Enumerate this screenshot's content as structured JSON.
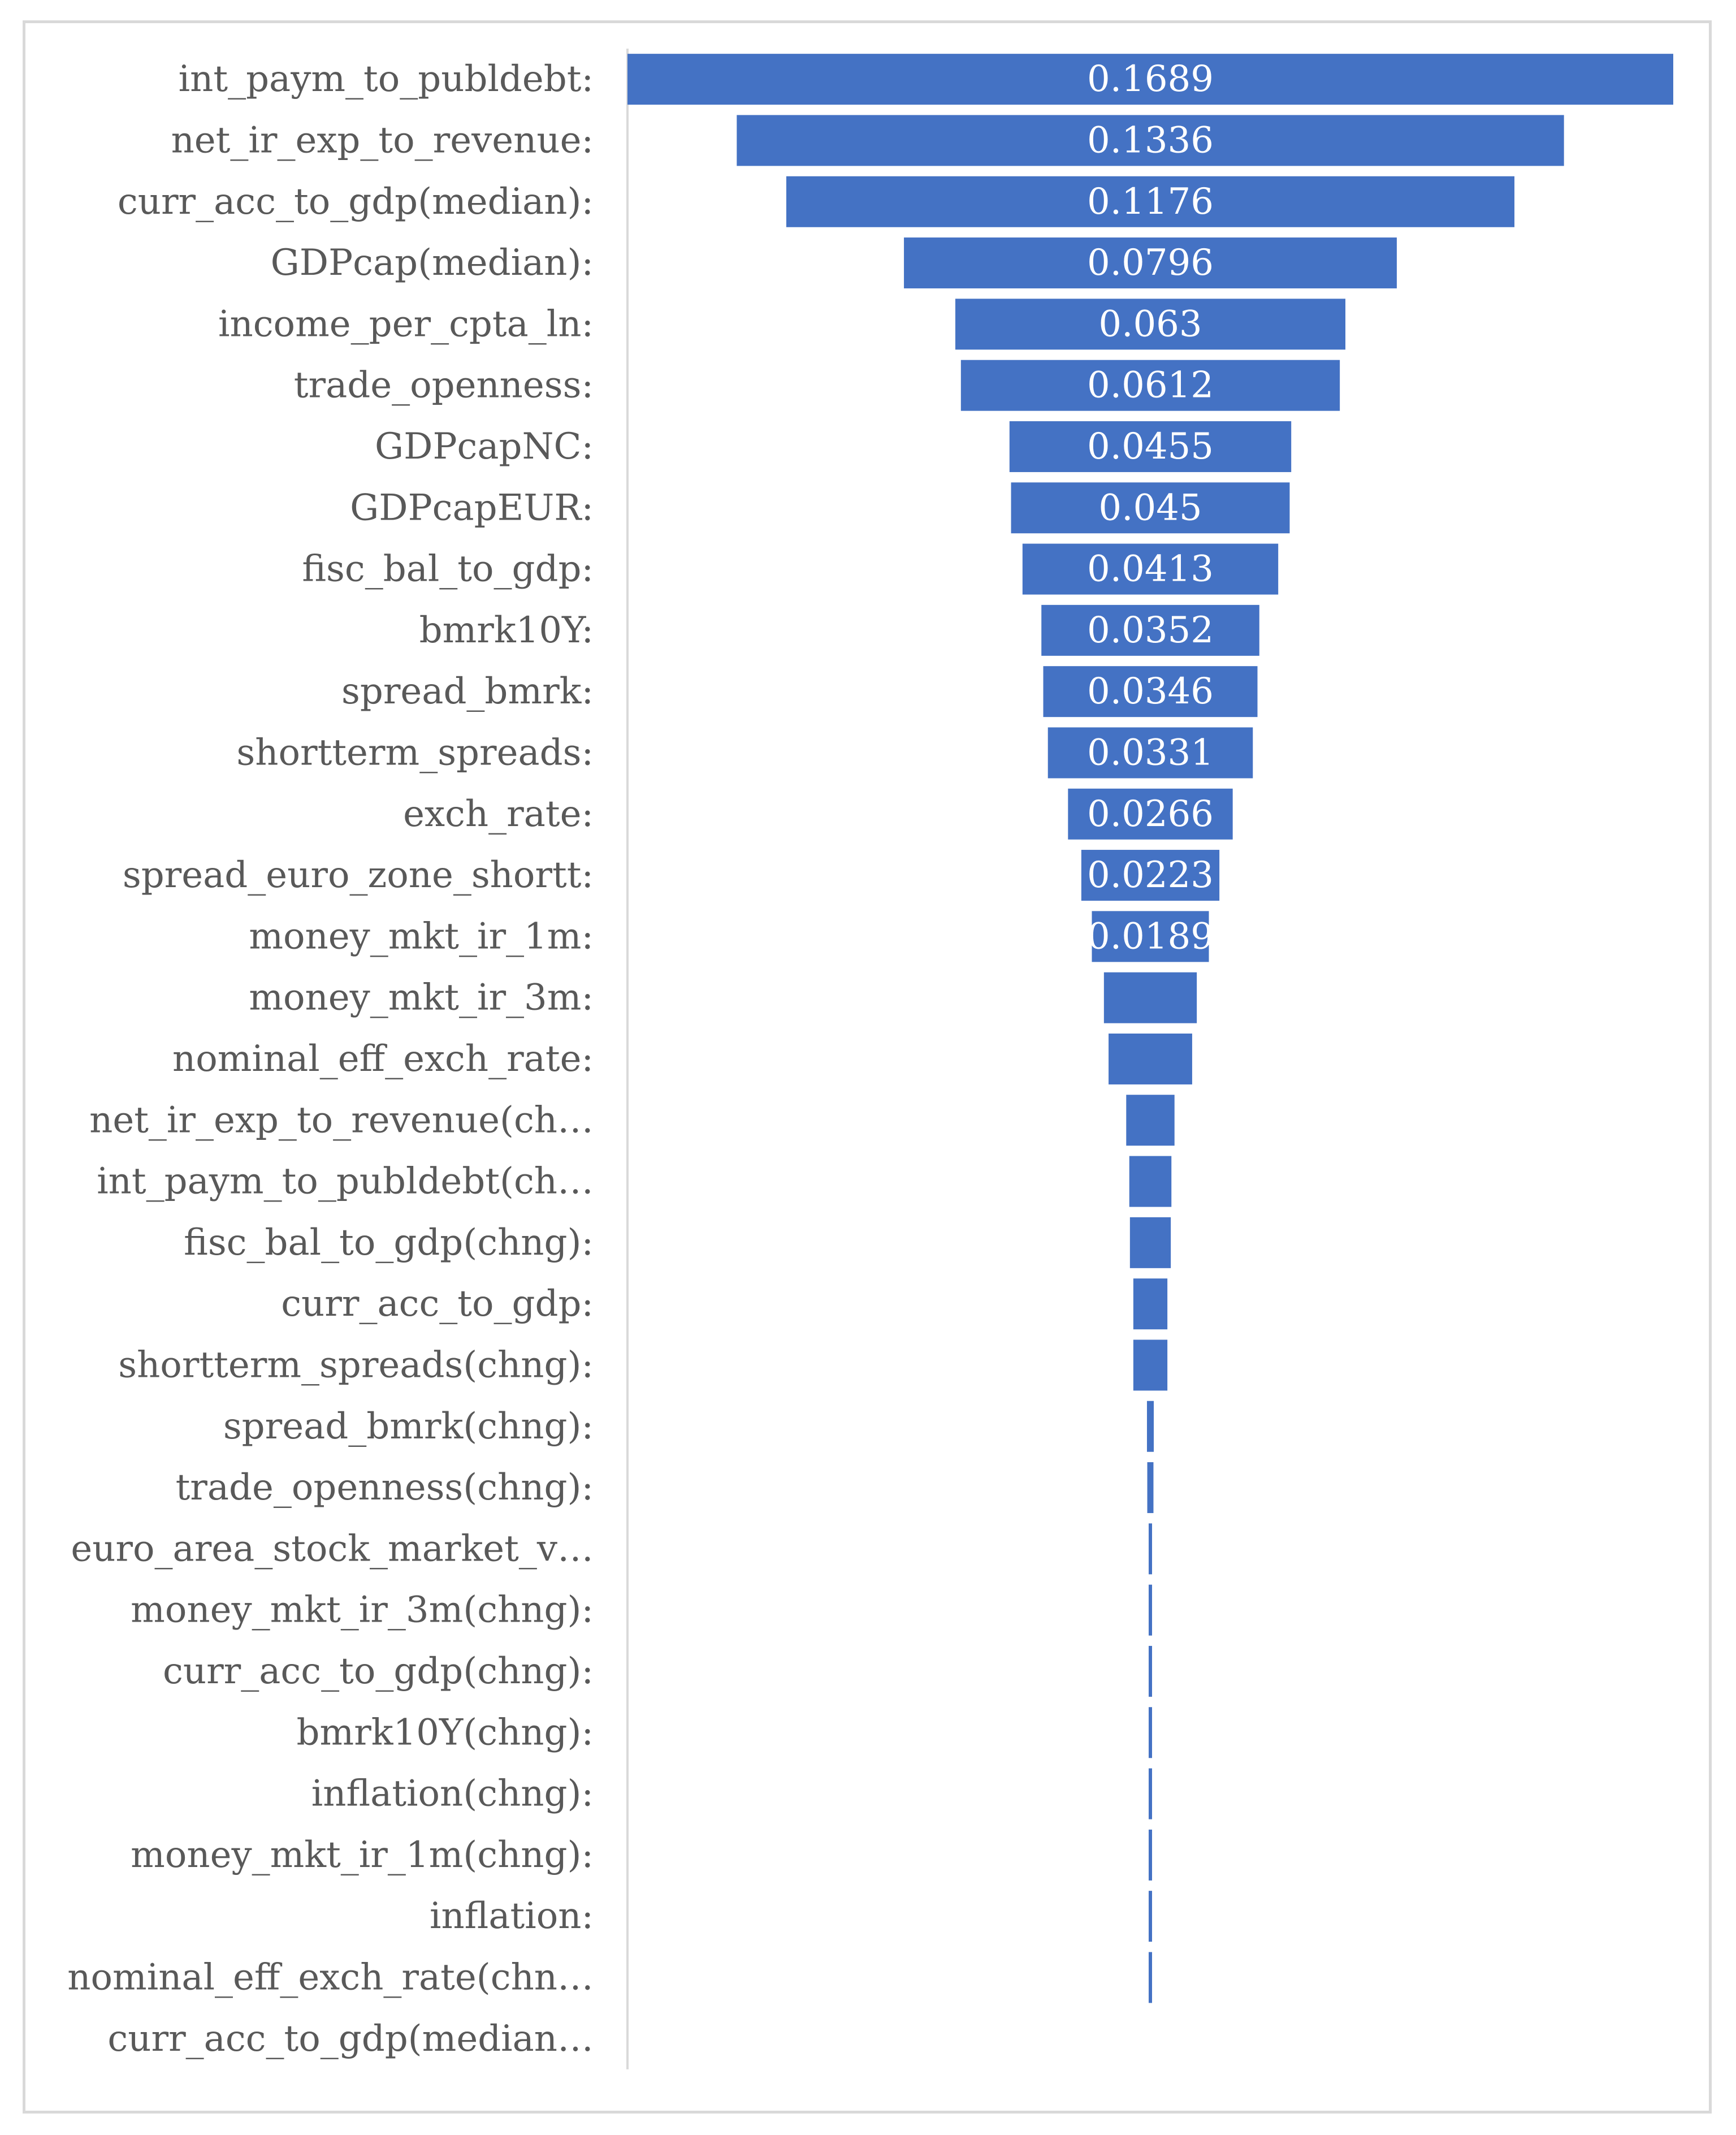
{
  "chart_data": {
    "type": "funnel",
    "orientation": "horizontal-centered",
    "bar_color": "#4472c4",
    "axis_color": "#d9d9d9",
    "label_color": "#595959",
    "value_label_color": "#ffffff",
    "categories": [
      "int_paym_to_publdebt:",
      "net_ir_exp_to_revenue:",
      "curr_acc_to_gdp(median):",
      "GDPcap(median):",
      "income_per_cpta_ln:",
      "trade_openness:",
      "GDPcapNC:",
      "GDPcapEUR:",
      "fisc_bal_to_gdp:",
      "bmrk10Y:",
      "spread_bmrk:",
      "shortterm_spreads:",
      "exch_rate:",
      "spread_euro_zone_shortt:",
      "money_mkt_ir_1m:",
      "money_mkt_ir_3m:",
      "nominal_eff_exch_rate:",
      "net_ir_exp_to_revenue(ch…",
      "int_paym_to_publdebt(ch…",
      "fisc_bal_to_gdp(chng):",
      "curr_acc_to_gdp:",
      "shortterm_spreads(chng):",
      "spread_bmrk(chng):",
      "trade_openness(chng):",
      "euro_area_stock_market_v…",
      "money_mkt_ir_3m(chng):",
      "curr_acc_to_gdp(chng):",
      "bmrk10Y(chng):",
      "inflation(chng):",
      "money_mkt_ir_1m(chng):",
      "inflation:",
      "nominal_eff_exch_rate(chn…",
      "curr_acc_to_gdp(median…"
    ],
    "values": [
      0.1689,
      0.1336,
      0.1176,
      0.0796,
      0.063,
      0.0612,
      0.0455,
      0.045,
      0.0413,
      0.0352,
      0.0346,
      0.0331,
      0.0266,
      0.0223,
      0.0189,
      0.015,
      0.0135,
      0.0078,
      0.0068,
      0.0066,
      0.0055,
      0.0055,
      0.0011,
      0.001,
      0.0004,
      0.0004,
      0.0004,
      0.0004,
      0.0004,
      0.0004,
      0.0004,
      0.0004,
      0
    ],
    "value_labels": [
      "0.1689",
      "0.1336",
      "0.1176",
      "0.0796",
      "0.063",
      "0.0612",
      "0.0455",
      "0.045",
      "0.0413",
      "0.0352",
      "0.0346",
      "0.0331",
      "0.0266",
      "0.0223",
      "0.0189",
      "",
      "",
      "",
      "",
      "",
      "",
      "",
      "",
      "",
      "",
      "",
      "",
      "",
      "",
      "",
      "",
      "",
      ""
    ],
    "title": "",
    "xlabel": "",
    "ylabel": "",
    "legend": "none",
    "grid": false
  }
}
